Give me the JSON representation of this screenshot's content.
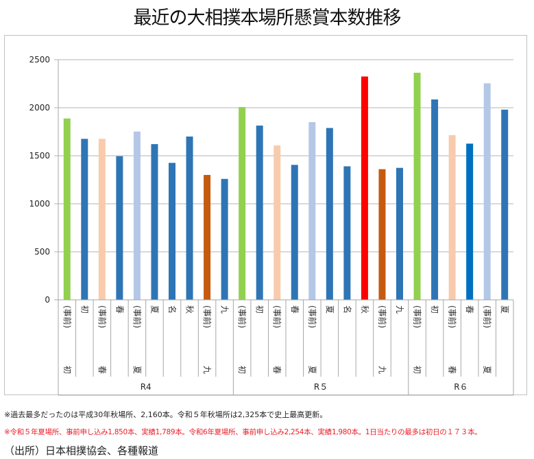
{
  "chart_data": {
    "type": "bar",
    "title": "最近の大相撲本場所懸賞本数推移",
    "xlabel": "",
    "ylabel": "",
    "ylim": [
      0,
      2500
    ],
    "yticks": [
      "0",
      "500",
      "1000",
      "1500",
      "2000",
      "2500"
    ],
    "grid": true,
    "legend": "none",
    "groups": [
      {
        "label": "R4",
        "count": 10
      },
      {
        "label": "R５",
        "count": 10
      },
      {
        "label": "R６",
        "count": 6
      }
    ],
    "categories": [
      {
        "name": "初",
        "sub": "(事前)",
        "group": "R4",
        "value": 1888,
        "color": "#92D050"
      },
      {
        "name": "初",
        "sub": "",
        "group": "R4",
        "value": 1676,
        "color": "#2E75B6"
      },
      {
        "name": "春",
        "sub": "(事前)",
        "group": "R4",
        "value": 1676,
        "color": "#F8CBAD"
      },
      {
        "name": "春",
        "sub": "",
        "group": "R4",
        "value": 1495,
        "color": "#2E75B6"
      },
      {
        "name": "夏",
        "sub": "(事前)",
        "group": "R4",
        "value": 1752,
        "color": "#B4C7E7"
      },
      {
        "name": "夏",
        "sub": "",
        "group": "R4",
        "value": 1621,
        "color": "#2E75B6"
      },
      {
        "name": "名",
        "sub": "",
        "group": "R4",
        "value": 1426,
        "color": "#2E75B6"
      },
      {
        "name": "秋",
        "sub": "",
        "group": "R4",
        "value": 1700,
        "color": "#2E75B6"
      },
      {
        "name": "九",
        "sub": "(事前)",
        "group": "R4",
        "value": 1300,
        "color": "#C55A11"
      },
      {
        "name": "九",
        "sub": "",
        "group": "R4",
        "value": 1259,
        "color": "#2E75B6"
      },
      {
        "name": "初",
        "sub": "(事前)",
        "group": "R５",
        "value": 2007,
        "color": "#92D050"
      },
      {
        "name": "初",
        "sub": "",
        "group": "R５",
        "value": 1814,
        "color": "#2E75B6"
      },
      {
        "name": "春",
        "sub": "(事前)",
        "group": "R５",
        "value": 1607,
        "color": "#F8CBAD"
      },
      {
        "name": "春",
        "sub": "",
        "group": "R５",
        "value": 1405,
        "color": "#2E75B6"
      },
      {
        "name": "夏",
        "sub": "(事前)",
        "group": "R５",
        "value": 1850,
        "color": "#B4C7E7"
      },
      {
        "name": "夏",
        "sub": "",
        "group": "R５",
        "value": 1789,
        "color": "#2E75B6"
      },
      {
        "name": "名",
        "sub": "",
        "group": "R５",
        "value": 1390,
        "color": "#2E75B6"
      },
      {
        "name": "秋",
        "sub": "",
        "group": "R５",
        "value": 2325,
        "color": "#FF0000"
      },
      {
        "name": "九",
        "sub": "(事前)",
        "group": "R５",
        "value": 1360,
        "color": "#C55A11"
      },
      {
        "name": "九",
        "sub": "",
        "group": "R５",
        "value": 1374,
        "color": "#2E75B6"
      },
      {
        "name": "初",
        "sub": "(事前)",
        "group": "R６",
        "value": 2364,
        "color": "#92D050"
      },
      {
        "name": "初",
        "sub": "",
        "group": "R６",
        "value": 2086,
        "color": "#2E75B6"
      },
      {
        "name": "春",
        "sub": "(事前)",
        "group": "R６",
        "value": 1714,
        "color": "#F8CBAD"
      },
      {
        "name": "春",
        "sub": "",
        "group": "R６",
        "value": 1626,
        "color": "#0070C0"
      },
      {
        "name": "夏",
        "sub": "(事前)",
        "group": "R６",
        "value": 2254,
        "color": "#B4C7E7"
      },
      {
        "name": "夏",
        "sub": "",
        "group": "R６",
        "value": 1980,
        "color": "#2E75B6"
      }
    ]
  },
  "notes": {
    "note1": "※過去最多だったのは平成30年秋場所、2,160本。令和５年秋場所は2,325本で史上最高更新。",
    "note2": "※令和５年夏場所、事前申し込み1,850本、実績1,789本。令和6年夏場所、事前申し込み2,254本、実績1,980本。1日当たりの最多は初日の１７３本。",
    "source": "（出所）日本相撲協会、各種報道"
  },
  "colors": {
    "grid": "#b3b3b3",
    "axis": "#a6a6a6",
    "note_red": "#e8202a"
  }
}
